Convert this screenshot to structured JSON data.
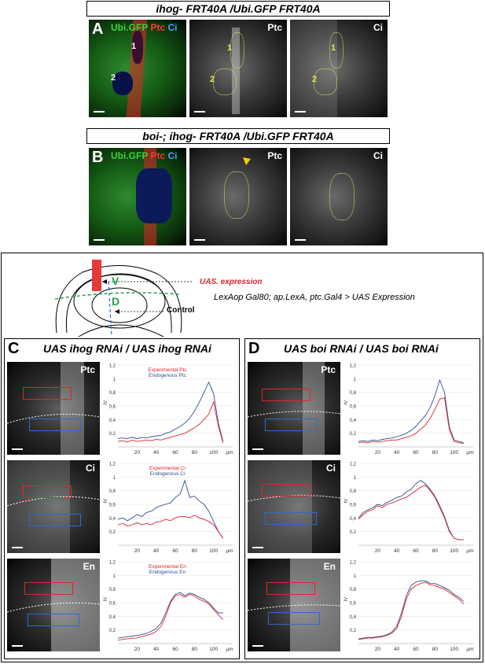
{
  "row_a": {
    "title": "ihog- FRT40A /Ubi.GFP FRT40A",
    "letter": "A",
    "merge_labels": [
      "Ubi.GFP",
      "Ptc",
      "Ci"
    ],
    "panels": [
      "Ptc",
      "Ci"
    ],
    "clone_labels": [
      "1",
      "2"
    ]
  },
  "row_b": {
    "title": "boi-; ihog- FRT40A /Ubi.GFP FRT40A",
    "letter": "B",
    "merge_labels": [
      "Ubi.GFP",
      "Ptc",
      "Ci"
    ],
    "panels": [
      "Ptc",
      "Ci"
    ]
  },
  "schematic": {
    "v_label": "V",
    "d_label": "D",
    "expression_label": "UAS. expression",
    "control_label": "Control",
    "genotype": "LexAop Gal80; ap.LexA, ptc.Gal4 > UAS Expression"
  },
  "panel_c": {
    "letter": "C",
    "title": "UAS ihog RNAi / UAS ihog RNAi",
    "micrograph_labels": [
      "Ptc",
      "Ci",
      "En"
    ]
  },
  "panel_d": {
    "letter": "D",
    "title": "UAS boi RNAi / UAS boi RNAi",
    "micrograph_labels": [
      "Ptc",
      "Ci",
      "En"
    ]
  },
  "colors": {
    "experimental": "#e0252b",
    "endogenous": "#2f4f8f",
    "gfp": "#39d23c",
    "ptc": "#ff3a2a",
    "ci": "#3aa6ff",
    "clone_outline": "#e8e060",
    "arrowhead": "#f5d000"
  },
  "chart_data": [
    {
      "id": "C-Ptc",
      "type": "line",
      "title": "",
      "xlabel": "µm",
      "ylabel": "IV",
      "ylim": [
        0,
        1.2
      ],
      "xlim": [
        0,
        120
      ],
      "yticks": [
        "0,2",
        "0,4",
        "0,6",
        "0,8",
        "1",
        "1,2"
      ],
      "xticks": [
        "20",
        "40",
        "60",
        "80",
        "100"
      ],
      "legend": [
        "Experimental Ptc",
        "Endogenous Ptc"
      ],
      "x": [
        0,
        5,
        10,
        15,
        20,
        25,
        30,
        35,
        40,
        45,
        50,
        55,
        60,
        65,
        70,
        75,
        80,
        85,
        90,
        95,
        100,
        105,
        110
      ],
      "series": [
        {
          "name": "Experimental Ptc",
          "values": [
            0.08,
            0.09,
            0.07,
            0.1,
            0.08,
            0.09,
            0.1,
            0.09,
            0.11,
            0.1,
            0.12,
            0.14,
            0.16,
            0.18,
            0.2,
            0.24,
            0.28,
            0.33,
            0.4,
            0.48,
            0.66,
            0.3,
            0.06
          ]
        },
        {
          "name": "Endogenous Ptc",
          "values": [
            0.12,
            0.13,
            0.12,
            0.14,
            0.12,
            0.14,
            0.13,
            0.15,
            0.16,
            0.17,
            0.2,
            0.22,
            0.26,
            0.3,
            0.35,
            0.42,
            0.52,
            0.65,
            0.8,
            0.95,
            0.78,
            0.35,
            0.08
          ]
        }
      ]
    },
    {
      "id": "C-Ci",
      "type": "line",
      "title": "",
      "xlabel": "µm",
      "ylabel": "IV",
      "ylim": [
        0,
        1.2
      ],
      "xlim": [
        0,
        120
      ],
      "yticks": [
        "0,2",
        "0,4",
        "0,6",
        "0,8",
        "1",
        "1,2"
      ],
      "xticks": [
        "20",
        "40",
        "60",
        "80",
        "100"
      ],
      "legend": [
        "Experimental Ci",
        "Endogenous Ci"
      ],
      "x": [
        0,
        5,
        10,
        15,
        20,
        25,
        30,
        35,
        40,
        45,
        50,
        55,
        60,
        65,
        70,
        75,
        80,
        85,
        90,
        95,
        100,
        105,
        110
      ],
      "series": [
        {
          "name": "Experimental Ci",
          "values": [
            0.3,
            0.32,
            0.28,
            0.3,
            0.33,
            0.3,
            0.32,
            0.3,
            0.34,
            0.35,
            0.38,
            0.36,
            0.4,
            0.42,
            0.42,
            0.4,
            0.44,
            0.4,
            0.38,
            0.35,
            0.3,
            0.2,
            0.1
          ]
        },
        {
          "name": "Endogenous Ci",
          "values": [
            0.38,
            0.4,
            0.36,
            0.4,
            0.45,
            0.42,
            0.48,
            0.5,
            0.55,
            0.58,
            0.6,
            0.62,
            0.7,
            0.75,
            0.95,
            0.7,
            0.72,
            0.65,
            0.6,
            0.5,
            0.35,
            0.2,
            0.1
          ]
        }
      ]
    },
    {
      "id": "C-En",
      "type": "line",
      "title": "",
      "xlabel": "µm",
      "ylabel": "IV",
      "ylim": [
        0,
        1.2
      ],
      "xlim": [
        0,
        120
      ],
      "yticks": [
        "0,2",
        "0,4",
        "0,6",
        "0,8",
        "1",
        "1,2"
      ],
      "xticks": [
        "20",
        "40",
        "60",
        "80",
        "100"
      ],
      "legend": [
        "Experimental En",
        "Endogenous En"
      ],
      "x": [
        0,
        5,
        10,
        15,
        20,
        25,
        30,
        35,
        40,
        45,
        50,
        55,
        60,
        65,
        70,
        75,
        80,
        85,
        90,
        95,
        100,
        105,
        110
      ],
      "series": [
        {
          "name": "Experimental En",
          "values": [
            0.05,
            0.06,
            0.07,
            0.08,
            0.08,
            0.1,
            0.12,
            0.14,
            0.18,
            0.25,
            0.4,
            0.6,
            0.7,
            0.72,
            0.68,
            0.72,
            0.7,
            0.65,
            0.62,
            0.58,
            0.5,
            0.42,
            0.35
          ]
        },
        {
          "name": "Endogenous En",
          "values": [
            0.08,
            0.09,
            0.1,
            0.11,
            0.12,
            0.13,
            0.15,
            0.18,
            0.22,
            0.3,
            0.45,
            0.62,
            0.72,
            0.75,
            0.7,
            0.74,
            0.72,
            0.68,
            0.65,
            0.6,
            0.52,
            0.45,
            0.45
          ]
        }
      ]
    },
    {
      "id": "D-Ptc",
      "type": "line",
      "title": "",
      "xlabel": "µm",
      "ylabel": "IV",
      "ylim": [
        0,
        1.2
      ],
      "xlim": [
        0,
        120
      ],
      "yticks": [
        "0,2",
        "0,4",
        "0,6",
        "0,8",
        "1",
        "1,2"
      ],
      "xticks": [
        "20",
        "40",
        "60",
        "80",
        "100"
      ],
      "x": [
        0,
        5,
        10,
        15,
        20,
        25,
        30,
        35,
        40,
        45,
        50,
        55,
        60,
        65,
        70,
        75,
        80,
        85,
        90,
        95,
        100,
        105,
        110
      ],
      "series": [
        {
          "values": [
            0.06,
            0.07,
            0.06,
            0.08,
            0.07,
            0.08,
            0.09,
            0.1,
            0.1,
            0.12,
            0.14,
            0.16,
            0.2,
            0.26,
            0.32,
            0.42,
            0.55,
            0.7,
            0.72,
            0.25,
            0.08,
            0.06,
            0.05
          ]
        },
        {
          "values": [
            0.08,
            0.09,
            0.08,
            0.1,
            0.09,
            0.11,
            0.12,
            0.13,
            0.15,
            0.17,
            0.2,
            0.24,
            0.3,
            0.38,
            0.46,
            0.58,
            0.75,
            0.98,
            0.8,
            0.3,
            0.1,
            0.08,
            0.06
          ]
        }
      ]
    },
    {
      "id": "D-Ci",
      "type": "line",
      "title": "",
      "xlabel": "µm",
      "ylabel": "IV",
      "ylim": [
        0,
        1.2
      ],
      "xlim": [
        0,
        120
      ],
      "yticks": [
        "0,2",
        "0,4",
        "0,6",
        "0,8",
        "1",
        "1,2"
      ],
      "xticks": [
        "20",
        "40",
        "60",
        "80",
        "100"
      ],
      "x": [
        0,
        5,
        10,
        15,
        20,
        25,
        30,
        35,
        40,
        45,
        50,
        55,
        60,
        65,
        70,
        75,
        80,
        85,
        90,
        95,
        100,
        105,
        110
      ],
      "series": [
        {
          "values": [
            0.38,
            0.45,
            0.5,
            0.52,
            0.58,
            0.55,
            0.6,
            0.62,
            0.65,
            0.68,
            0.7,
            0.75,
            0.8,
            0.85,
            0.88,
            0.8,
            0.7,
            0.55,
            0.4,
            0.2,
            0.1,
            0.08,
            0.08
          ]
        },
        {
          "values": [
            0.4,
            0.48,
            0.52,
            0.55,
            0.6,
            0.58,
            0.63,
            0.66,
            0.7,
            0.72,
            0.78,
            0.82,
            0.9,
            0.95,
            0.9,
            0.82,
            0.72,
            0.58,
            0.42,
            0.22,
            0.1,
            0.08,
            0.08
          ]
        }
      ]
    },
    {
      "id": "D-En",
      "type": "line",
      "title": "",
      "xlabel": "µm",
      "ylabel": "IV",
      "ylim": [
        0,
        1.2
      ],
      "xlim": [
        0,
        120
      ],
      "yticks": [
        "0,2",
        "0,4",
        "0,6",
        "0,8",
        "1",
        "1,2"
      ],
      "xticks": [
        "20",
        "40",
        "60",
        "80",
        "100"
      ],
      "x": [
        0,
        5,
        10,
        15,
        20,
        25,
        30,
        35,
        40,
        45,
        50,
        55,
        60,
        65,
        70,
        75,
        80,
        85,
        90,
        95,
        100,
        105,
        110
      ],
      "series": [
        {
          "values": [
            0.06,
            0.07,
            0.08,
            0.08,
            0.09,
            0.1,
            0.12,
            0.15,
            0.22,
            0.4,
            0.65,
            0.8,
            0.85,
            0.88,
            0.9,
            0.86,
            0.85,
            0.82,
            0.8,
            0.75,
            0.7,
            0.65,
            0.58
          ]
        },
        {
          "values": [
            0.07,
            0.08,
            0.09,
            0.09,
            0.1,
            0.11,
            0.13,
            0.17,
            0.25,
            0.45,
            0.7,
            0.85,
            0.9,
            0.92,
            0.92,
            0.88,
            0.88,
            0.85,
            0.82,
            0.78,
            0.72,
            0.68,
            0.62
          ]
        }
      ]
    }
  ]
}
